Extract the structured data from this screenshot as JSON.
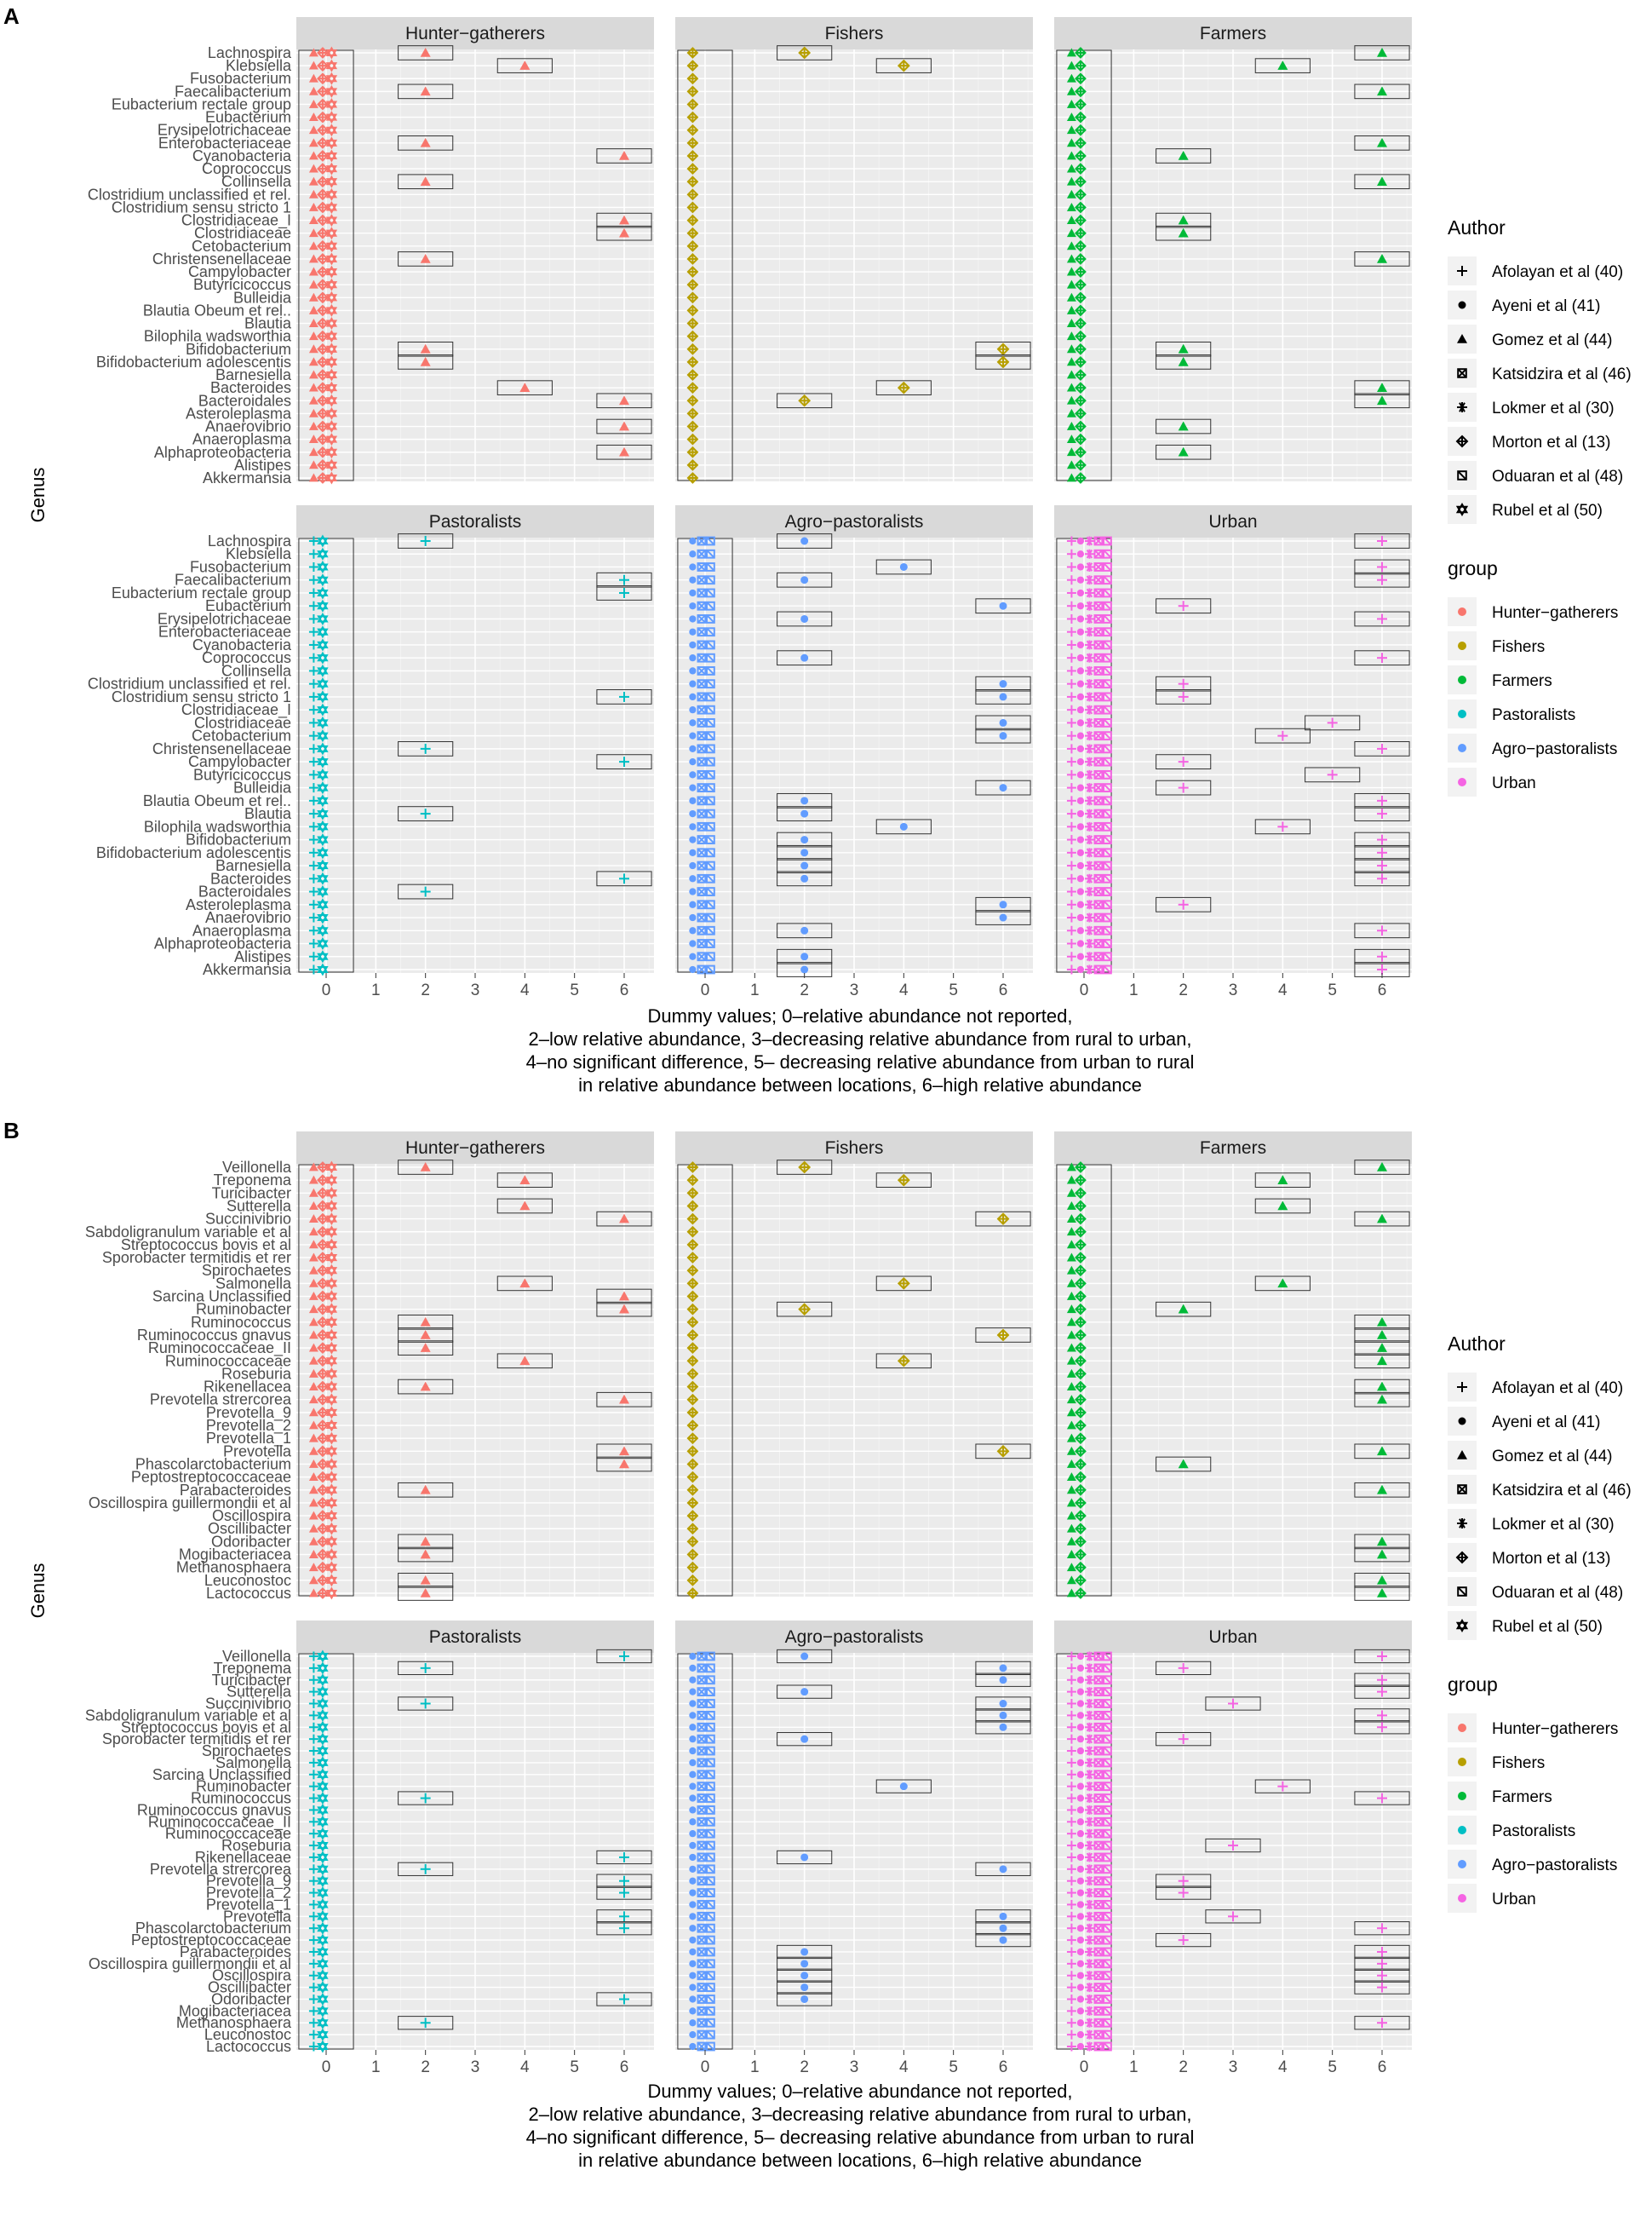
{
  "figure": {
    "xlabel_lines": [
      "Dummy values; 0–relative abundance not reported,",
      "2–low relative abundance, 3–decreasing relative abundance from rural to urban,",
      "4–no significant difference, 5– decreasing relative abundance from urban to rural",
      "in relative abundance between locations, 6–high relative abundance"
    ],
    "ylabel": "Genus",
    "x_ticks": [
      "0",
      "1",
      "2",
      "3",
      "4",
      "5",
      "6"
    ],
    "legend": {
      "author_title": "Author",
      "authors": [
        {
          "name": "Afolayan et al (40)",
          "shape": "plus"
        },
        {
          "name": "Ayeni et al (41)",
          "shape": "circle"
        },
        {
          "name": "Gomez et al (44)",
          "shape": "triangle"
        },
        {
          "name": "Katsidzira et al (46)",
          "shape": "squarecross"
        },
        {
          "name": "Lokmer et al (30)",
          "shape": "asterisk"
        },
        {
          "name": "Morton et al (13)",
          "shape": "diamondplus"
        },
        {
          "name": "Oduaran et al (48)",
          "shape": "boxx"
        },
        {
          "name": "Rubel et al (50)",
          "shape": "star"
        }
      ],
      "group_title": "group",
      "groups": [
        {
          "name": "Hunter−gatherers",
          "color": "#F8766D"
        },
        {
          "name": "Fishers",
          "color": "#B79F00"
        },
        {
          "name": "Farmers",
          "color": "#00BA38"
        },
        {
          "name": "Pastoralists",
          "color": "#00BFC4"
        },
        {
          "name": "Agro−pastoralists",
          "color": "#619CFF"
        },
        {
          "name": "Urban",
          "color": "#F564E3"
        }
      ]
    }
  },
  "chart_data": [
    {
      "panel": "A",
      "type": "scatter",
      "xlim": [
        -0.6,
        6.6
      ],
      "xlabel": "Dummy values",
      "ylabel": "Genus",
      "facets": [
        "Hunter−gatherers",
        "Fishers",
        "Farmers",
        "Pastoralists",
        "Agro−pastoralists",
        "Urban"
      ],
      "genera": [
        "Lachnospira",
        "Klebsiella",
        "Fusobacterium",
        "Faecalibacterium",
        "Eubacterium rectale group",
        "Eubacterium",
        "Erysipelotrichaceae",
        "Enterobacteriaceae",
        "Cyanobacteria",
        "Coprococcus",
        "Collinsella",
        "Clostridium unclassified et rel.",
        "Clostridium sensu stricto 1",
        "Clostridiaceae_I",
        "Clostridiaceae",
        "Cetobacterium",
        "Christensenellaceae",
        "Campylobacter",
        "Butyricicoccus",
        "Bulleidia",
        "Blautia Obeum et rel..",
        "Blautia",
        "Bilophila wadsworthia",
        "Bifidobacterium",
        "Bifidobacterium adolescentis",
        "Barnesiella",
        "Bacteroides",
        "Bacteroidales",
        "Asteroleplasma",
        "Anaerovibrio",
        "Anaeroplasma",
        "Alphaproteobacteria",
        "Alistipes",
        "Akkermansia"
      ],
      "genera_bottom": [
        "Lachnospira",
        "Klebsiella",
        "Fusobacterium",
        "Faecalibacterium",
        "Eubacterium rectale group",
        "Eubacterium",
        "Erysipelotrichaceae",
        "Enterobacteriaceae",
        "Cyanobacteria",
        "Coprococcus",
        "Collinsella",
        "Clostridium unclassified et rel.",
        "Clostridium sensu stricto 1",
        "Clostridiaceae_I",
        "Clostridiaceae",
        "Cetobacterium",
        "Christensenellaceae",
        "Campylobacter",
        "Butyricicoccus",
        "Bulleidia",
        "Blautia Obeum et rel..",
        "Blautia",
        "Bilophila wadsworthia",
        "Bifidobacterium",
        "Bifidobacterium adolescentis",
        "Barnesiella",
        "Bacteroides",
        "Bacteroidales",
        "Asteroleplasma",
        "Anaerovibrio",
        "Anaeroplasma",
        "Alphaproteobacteria",
        "Alistipes",
        "Akkermansia"
      ],
      "high_values": {
        "Hunter−gatherers": {
          "Lachnospira": 2,
          "Klebsiella": 4,
          "Faecalibacterium": 2,
          "Enterobacteriaceae": 2,
          "Cyanobacteria": 6,
          "Collinsella": 2,
          "Clostridiaceae_I": 6,
          "Clostridiaceae": 6,
          "Christensenellaceae": 2,
          "Bifidobacterium": 2,
          "Bifidobacterium adolescentis": 2,
          "Bacteroides": 4,
          "Bacteroidales": 6,
          "Anaerovibrio": 6,
          "Alphaproteobacteria": 6
        },
        "Fishers": {
          "Lachnospira": 2,
          "Klebsiella": 4,
          "Bifidobacterium": 6,
          "Bifidobacterium adolescentis": 6,
          "Bacteroides": 4,
          "Bacteroidales": 2
        },
        "Farmers": {
          "Lachnospira": 6,
          "Klebsiella": 4,
          "Faecalibacterium": 6,
          "Enterobacteriaceae": 6,
          "Cyanobacteria": 2,
          "Collinsella": 6,
          "Clostridiaceae_I": 2,
          "Clostridiaceae": 2,
          "Christensenellaceae": 6,
          "Bifidobacterium": 2,
          "Bifidobacterium adolescentis": 2,
          "Bacteroides": 6,
          "Bacteroidales": 6,
          "Anaerovibrio": 2,
          "Alphaproteobacteria": 2
        },
        "Pastoralists": {
          "Lachnospira": 2,
          "Faecalibacterium": 6,
          "Eubacterium rectale group": 6,
          "Clostridium sensu stricto 1": 6,
          "Christensenellaceae": 2,
          "Campylobacter": 6,
          "Blautia": 2,
          "Bacteroides": 6,
          "Bacteroidales": 2
        },
        "Agro−pastoralists": {
          "Lachnospira": 2,
          "Fusobacterium": 4,
          "Faecalibacterium": 2,
          "Eubacterium": 6,
          "Erysipelotrichaceae": 2,
          "Coprococcus": 2,
          "Clostridium unclassified et rel.": 6,
          "Clostridium sensu stricto 1": 6,
          "Clostridiaceae": 6,
          "Cetobacterium": 6,
          "Bulleidia": 6,
          "Blautia Obeum et rel..": 2,
          "Blautia": 2,
          "Bilophila wadsworthia": 4,
          "Bifidobacterium": 2,
          "Bifidobacterium adolescentis": 2,
          "Barnesiella": 2,
          "Bacteroides": 2,
          "Asteroleplasma": 6,
          "Anaerovibrio": 6,
          "Anaeroplasma": 2,
          "Alistipes": 2,
          "Akkermansia": 2
        },
        "Urban": {
          "Lachnospira": 6,
          "Fusobacterium": 6,
          "Faecalibacterium": 6,
          "Eubacterium": 2,
          "Erysipelotrichaceae": 6,
          "Coprococcus": 6,
          "Clostridium unclassified et rel.": 2,
          "Clostridium sensu stricto 1": 2,
          "Clostridiaceae": 5,
          "Cetobacterium": 4,
          "Christensenellaceae": 6,
          "Campylobacter": 2,
          "Butyricicoccus": 5,
          "Bulleidia": 2,
          "Blautia Obeum et rel..": 6,
          "Blautia": 6,
          "Bilophila wadsworthia": 4,
          "Bifidobacterium": 6,
          "Bifidobacterium adolescentis": 6,
          "Barnesiella": 6,
          "Bacteroides": 6,
          "Asteroleplasma": 2,
          "Anaeroplasma": 6,
          "Alistipes": 6,
          "Akkermansia": 6
        }
      }
    },
    {
      "panel": "B",
      "type": "scatter",
      "xlim": [
        -0.6,
        6.6
      ],
      "xlabel": "Dummy values",
      "ylabel": "Genus",
      "facets": [
        "Hunter−gatherers",
        "Fishers",
        "Farmers",
        "Pastoralists",
        "Agro−pastoralists",
        "Urban"
      ],
      "genera": [
        "Veillonella",
        "Treponema",
        "Turicibacter",
        "Sutterella",
        "Succinivibrio",
        "Sabdoligranulum variable et al",
        "Streptococcus bovis et al",
        "Sporobacter termitidis et rer",
        "Spirochaetes",
        "Salmonella",
        "Sarcina Unclassified",
        "Ruminobacter",
        "Ruminococcus",
        "Ruminococcus gnavus",
        "Ruminococcaceae_II",
        "Ruminococcaceae",
        "Roseburia",
        "Rikenellacea",
        "Prevotella strercorea",
        "Prevotella_9",
        "Prevotella_2",
        "Prevotella_1",
        "Prevotella",
        "Phascolarctobacterium",
        "Peptostreptococcaceae",
        "Parabacteroides",
        "Oscillospira guillermondii et al",
        "Oscillospira",
        "Oscillibacter",
        "Odoribacter",
        "Mogibacteriacea",
        "Methanosphaera",
        "Leuconostoc",
        "Lactococcus"
      ],
      "genera_bottom": [
        "Veillonella",
        "Treponema",
        "Turicibacter",
        "Sutterella",
        "Succinivibrio",
        "Sabdoligranulum variable et al",
        "Streptococcus bovis et al",
        "Sporobacter termitidis et rer",
        "Spirochaetes",
        "Salmonella",
        "Sarcina Unclassified",
        "Ruminobacter",
        "Ruminococcus",
        "Ruminococcus gnavus",
        "Ruminococcaceae_II",
        "Ruminococcaceae",
        "Roseburia",
        "Rikenellaceae",
        "Prevotella strercorea",
        "Prevotella_9",
        "Prevotella_2",
        "Prevotella_1",
        "Prevotella",
        "Phascolarctobacterium",
        "Peptostreptococcaceae",
        "Parabacteroides",
        "Oscillospira guillermondii et al",
        "Oscillospira",
        "Oscillibacter",
        "Odoribacter",
        "Mogibacteriacea",
        "Methanosphaera",
        "Leuconostoc",
        "Lactococcus"
      ],
      "high_values": {
        "Hunter−gatherers": {
          "Veillonella": 2,
          "Treponema": 4,
          "Sutterella": 4,
          "Succinivibrio": 6,
          "Salmonella": 4,
          "Sarcina Unclassified": 6,
          "Ruminobacter": 6,
          "Ruminococcus": 2,
          "Ruminococcus gnavus": 2,
          "Ruminococcaceae_II": 2,
          "Ruminococcaceae": 4,
          "Rikenellacea": 2,
          "Prevotella strercorea": 6,
          "Prevotella": 6,
          "Phascolarctobacterium": 6,
          "Parabacteroides": 2,
          "Odoribacter": 2,
          "Mogibacteriacea": 2,
          "Leuconostoc": 2,
          "Lactococcus": 2
        },
        "Fishers": {
          "Veillonella": 2,
          "Treponema": 4,
          "Succinivibrio": 6,
          "Salmonella": 4,
          "Ruminobacter": 2,
          "Ruminococcus gnavus": 6,
          "Ruminococcaceae": 4,
          "Prevotella": 6
        },
        "Farmers": {
          "Veillonella": 6,
          "Treponema": 4,
          "Sutterella": 4,
          "Succinivibrio": 6,
          "Salmonella": 4,
          "Ruminobacter": 2,
          "Ruminococcus": 6,
          "Ruminococcus gnavus": 6,
          "Ruminococcaceae_II": 6,
          "Ruminococcaceae": 6,
          "Rikenellacea": 6,
          "Prevotella strercorea": 6,
          "Prevotella": 6,
          "Phascolarctobacterium": 2,
          "Parabacteroides": 6,
          "Odoribacter": 6,
          "Mogibacteriacea": 6,
          "Leuconostoc": 6,
          "Lactococcus": 6
        },
        "Pastoralists": {
          "Veillonella": 6,
          "Treponema": 2,
          "Succinivibrio": 2,
          "Ruminococcus": 2,
          "Rikenellaceae": 6,
          "Prevotella strercorea": 2,
          "Prevotella_9": 6,
          "Prevotella_2": 6,
          "Prevotella": 6,
          "Phascolarctobacterium": 6,
          "Odoribacter": 6,
          "Methanosphaera": 2
        },
        "Agro−pastoralists": {
          "Veillonella": 2,
          "Treponema": 6,
          "Turicibacter": 6,
          "Sutterella": 2,
          "Succinivibrio": 6,
          "Sabdoligranulum variable et al": 6,
          "Streptococcus bovis et al": 6,
          "Sporobacter termitidis et rer": 2,
          "Ruminobacter": 4,
          "Rikenellaceae": 2,
          "Prevotella strercorea": 6,
          "Prevotella": 6,
          "Phascolarctobacterium": 6,
          "Peptostreptococcaceae": 6,
          "Parabacteroides": 2,
          "Oscillospira guillermondii et al": 2,
          "Oscillospira": 2,
          "Oscillibacter": 2,
          "Odoribacter": 2
        },
        "Urban": {
          "Veillonella": 6,
          "Treponema": 2,
          "Turicibacter": 6,
          "Sutterella": 6,
          "Succinivibrio": 3,
          "Sabdoligranulum variable et al": 6,
          "Streptococcus bovis et al": 6,
          "Sporobacter termitidis et rer": 2,
          "Ruminobacter": 4,
          "Ruminococcus": 6,
          "Roseburia": 3,
          "Prevotella_9": 2,
          "Prevotella_2": 2,
          "Prevotella": 3,
          "Phascolarctobacterium": 6,
          "Peptostreptococcaceae": 2,
          "Parabacteroides": 6,
          "Oscillospira guillermondii et al": 6,
          "Oscillospira": 6,
          "Oscillibacter": 6,
          "Methanosphaera": 6
        }
      }
    }
  ]
}
